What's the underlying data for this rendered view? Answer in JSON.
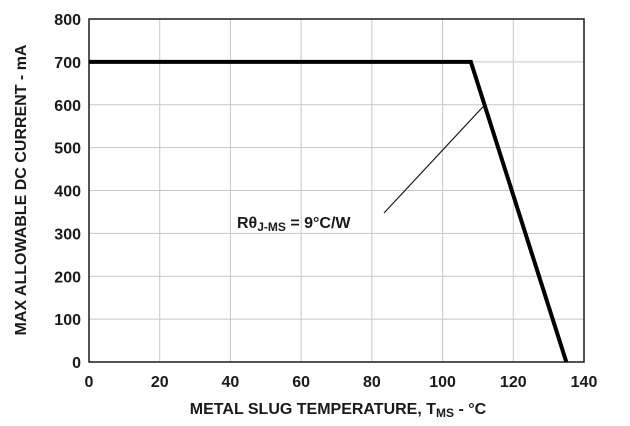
{
  "chart_data": {
    "type": "line",
    "x_label_main": "METAL SLUG TEMPERATURE, T",
    "x_label_sub": "MS",
    "x_label_tail": " - °C",
    "y_label": "MAX ALLOWABLE DC CURRENT - mA",
    "xlim": [
      0,
      140
    ],
    "ylim": [
      0,
      800
    ],
    "x_ticks": [
      0,
      20,
      40,
      60,
      80,
      100,
      120,
      140
    ],
    "y_ticks": [
      0,
      100,
      200,
      300,
      400,
      500,
      600,
      700,
      800
    ],
    "grid": true,
    "series": [
      {
        "x": [
          0,
          108,
          135
        ],
        "y": [
          700,
          700,
          0
        ]
      }
    ],
    "annotation": {
      "text_main": "Rθ",
      "text_sub": "J-MS",
      "text_tail": " = 9°C/W",
      "target": [
        112,
        600
      ]
    }
  }
}
